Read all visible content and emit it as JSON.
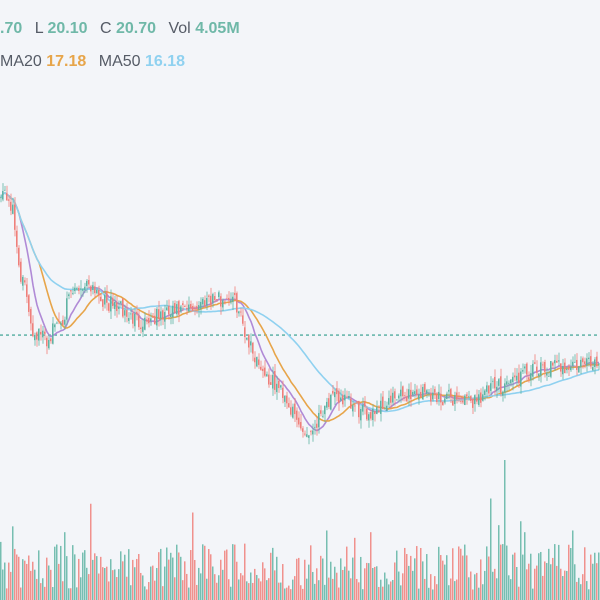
{
  "legend": {
    "ohlc": {
      "h_value": ".70",
      "l_label": "L",
      "l_value": "20.10",
      "c_label": "C",
      "c_value": "20.70",
      "vol_label": "Vol",
      "vol_value": "4.05M"
    },
    "ma": {
      "ma20_label": "MA20",
      "ma20_value": "17.18",
      "ma50_label": "MA50",
      "ma50_value": "16.18"
    }
  },
  "colors": {
    "up": "#5fb4a4",
    "down": "#ef7f7a",
    "ma10": "#b08ad6",
    "ma20": "#e7a54a",
    "ma50": "#8fd1f0",
    "baseline": "#2c9c8c",
    "background": "#f3f5f9"
  },
  "chart_data": {
    "type": "line",
    "subtype": "candlestick",
    "price_range": [
      11,
      34
    ],
    "baseline_price": 20.7,
    "volume_range_millions": [
      0,
      8
    ],
    "n_bars": 300,
    "close_anchors": [
      [
        0,
        31.2
      ],
      [
        4,
        30.5
      ],
      [
        6,
        29.5
      ],
      [
        8,
        27.0
      ],
      [
        10,
        25.0
      ],
      [
        13,
        23.5
      ],
      [
        16,
        21.0
      ],
      [
        20,
        20.7
      ],
      [
        24,
        20.3
      ],
      [
        27,
        21.5
      ],
      [
        31,
        22.0
      ],
      [
        35,
        23.5
      ],
      [
        40,
        24.2
      ],
      [
        44,
        24.5
      ],
      [
        48,
        24.0
      ],
      [
        52,
        23.0
      ],
      [
        58,
        22.8
      ],
      [
        64,
        22.0
      ],
      [
        70,
        21.7
      ],
      [
        78,
        22.0
      ],
      [
        86,
        22.3
      ],
      [
        94,
        22.5
      ],
      [
        100,
        23.0
      ],
      [
        104,
        23.5
      ],
      [
        110,
        23.2
      ],
      [
        114,
        23.5
      ],
      [
        118,
        22.9
      ],
      [
        122,
        21.0
      ],
      [
        126,
        19.5
      ],
      [
        130,
        18.5
      ],
      [
        134,
        17.5
      ],
      [
        138,
        17.0
      ],
      [
        142,
        16.5
      ],
      [
        146,
        15.0
      ],
      [
        150,
        14.0
      ],
      [
        154,
        13.6
      ],
      [
        158,
        14.5
      ],
      [
        162,
        15.8
      ],
      [
        166,
        16.0
      ],
      [
        170,
        16.2
      ],
      [
        176,
        15.5
      ],
      [
        182,
        15.0
      ],
      [
        188,
        15.5
      ],
      [
        196,
        16.0
      ],
      [
        204,
        16.5
      ],
      [
        212,
        16.6
      ],
      [
        220,
        16.2
      ],
      [
        228,
        16.2
      ],
      [
        234,
        15.8
      ],
      [
        240,
        16.4
      ],
      [
        248,
        17.0
      ],
      [
        256,
        17.5
      ],
      [
        264,
        18.0
      ],
      [
        272,
        18.2
      ],
      [
        280,
        18.5
      ],
      [
        288,
        18.5
      ],
      [
        294,
        18.7
      ],
      [
        299,
        18.8
      ]
    ],
    "volume_spikes": [
      {
        "bar": 45,
        "vol_millions": 5.5
      },
      {
        "bar": 96,
        "vol_millions": 5.0
      },
      {
        "bar": 245,
        "vol_millions": 5.8
      },
      {
        "bar": 252,
        "vol_millions": 8.0
      },
      {
        "bar": 260,
        "vol_millions": 4.5
      }
    ],
    "series": [
      {
        "name": "MA20",
        "period": 20
      },
      {
        "name": "MA50",
        "period": 50
      }
    ],
    "grid": false
  }
}
